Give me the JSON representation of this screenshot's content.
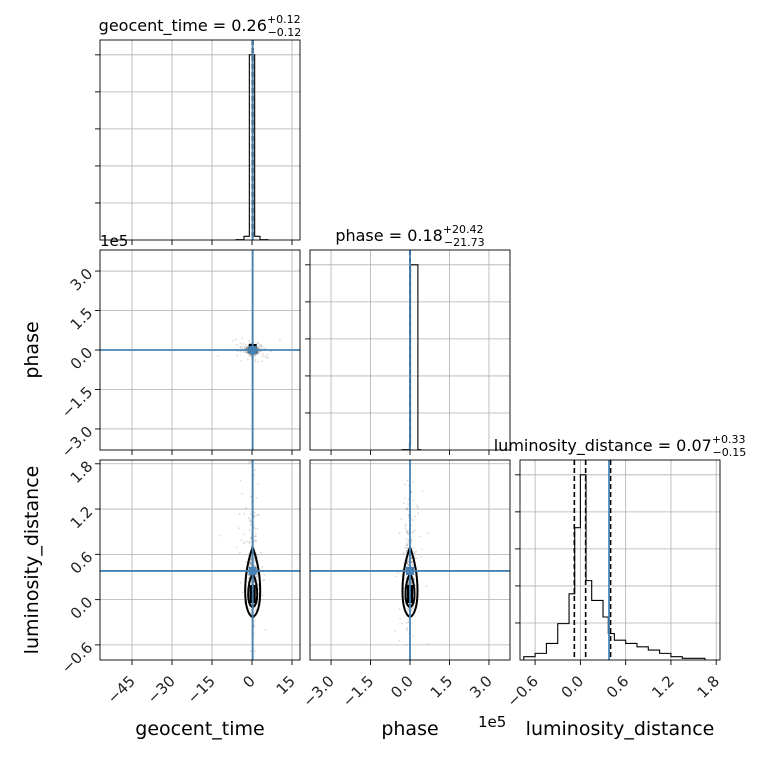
{
  "chart_data": {
    "type": "scatter",
    "parameters": [
      "geocent_time",
      "phase",
      "luminosity_distance"
    ],
    "axis_labels": [
      "geocent_time",
      "phase",
      "luminosity_distance"
    ],
    "titles": [
      {
        "name": "geocent_time",
        "prefix": "geocent_time = ",
        "median": "0.26",
        "plus": "+0.12",
        "minus": "−0.12"
      },
      {
        "name": "phase",
        "prefix": "phase = ",
        "median": "0.18",
        "plus": "+20.42",
        "minus": "−21.73"
      },
      {
        "name": "luminosity_distance",
        "prefix": "luminosity_distance = ",
        "median": "0.07",
        "plus": "+0.33",
        "minus": "−0.15"
      }
    ],
    "offset_labels": [
      "1e5",
      "1e5"
    ],
    "ranges": [
      [
        -57,
        18
      ],
      [
        -380000,
        380000
      ],
      [
        -0.8,
        1.85
      ]
    ],
    "ticks": [
      {
        "values": [
          -45,
          -30,
          -15,
          0,
          15
        ],
        "labels": [
          "−45",
          "−30",
          "−15",
          "0",
          "15"
        ]
      },
      {
        "values": [
          -300000,
          -150000,
          0,
          150000,
          300000
        ],
        "labels": [
          "−3.0",
          "−1.5",
          "0.0",
          "1.5",
          "3.0"
        ]
      },
      {
        "values": [
          -0.6,
          0.0,
          0.6,
          1.2,
          1.8
        ],
        "labels": [
          "−0.6",
          "0.0",
          "0.6",
          "1.2",
          "1.8"
        ]
      }
    ],
    "truths": [
      0.26,
      0.18,
      0.38
    ],
    "quantiles": [
      [
        0.14,
        0.26,
        0.38
      ],
      [
        -21.55,
        0.18,
        20.6
      ],
      [
        -0.08,
        0.07,
        0.4
      ]
    ],
    "histograms": [
      {
        "edges": [
          -6,
          -3,
          -1,
          1,
          3,
          6
        ],
        "counts": [
          2,
          20,
          1000,
          20,
          2
        ]
      },
      {
        "edges": [
          -30000,
          -2000,
          2000,
          30000,
          40000
        ],
        "counts": [
          2,
          30,
          1000,
          2
        ]
      },
      {
        "edges": [
          -0.75,
          -0.6,
          -0.45,
          -0.3,
          -0.15,
          -0.075,
          0.0,
          0.075,
          0.15,
          0.3,
          0.37,
          0.45,
          0.6,
          0.75,
          0.9,
          1.05,
          1.2,
          1.35,
          1.65
        ],
        "counts": [
          1,
          2,
          5,
          11,
          20,
          40,
          56,
          24,
          18,
          13,
          8,
          6,
          5,
          4,
          3,
          2,
          1,
          0.5
        ]
      }
    ]
  }
}
